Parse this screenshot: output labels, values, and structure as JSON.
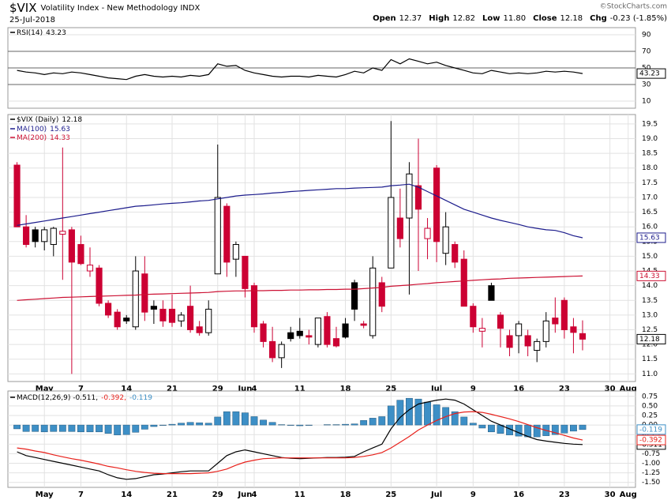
{
  "header": {
    "symbol": "$VIX",
    "name": "Volatility Index - New Methodology INDX",
    "date": "25-Jul-2018",
    "quote": [
      {
        "label": "Open",
        "value": "12.37"
      },
      {
        "label": "High",
        "value": "12.82"
      },
      {
        "label": "Low",
        "value": "11.80"
      },
      {
        "label": "Close",
        "value": "12.18"
      },
      {
        "label": "Chg",
        "value": "-0.23 (-1.85%)"
      }
    ],
    "copyright": "©StockCharts.com"
  },
  "chart_data": [
    {
      "type": "line",
      "ylim": [
        1.4,
        98.6
      ],
      "yticks": [
        10,
        30,
        50,
        70,
        90
      ],
      "reference_lines": [
        30,
        50,
        70
      ],
      "grid": true,
      "xlim": [
        -1,
        67.8
      ],
      "series": [
        {
          "name": "RSI(14)",
          "color": "#000000",
          "values": [
            47,
            45,
            44,
            42,
            44,
            43,
            45,
            44,
            42,
            40,
            38,
            37,
            36,
            40,
            42,
            40,
            39,
            40,
            39,
            41,
            40,
            42,
            55,
            52,
            53,
            47,
            44,
            42,
            40,
            39,
            40,
            40,
            39,
            41,
            40,
            39,
            42,
            46,
            44,
            50,
            47,
            60,
            55,
            61,
            58,
            55,
            57,
            53,
            50,
            47,
            44,
            43,
            47,
            45,
            43,
            44,
            43,
            44,
            46,
            45,
            46,
            45,
            43.23
          ]
        }
      ]
    },
    {
      "type": "candlestick",
      "title": "$VIX (Daily)",
      "color_up": "#000000",
      "color_down": "#cc0033",
      "grid": true,
      "open": [
        18.1,
        16.0,
        15.9,
        15.5,
        15.4,
        15.75,
        15.9,
        15.4,
        14.5,
        14.6,
        13.4,
        13.1,
        12.9,
        12.6,
        14.4,
        13.3,
        13.2,
        13.2,
        12.8,
        13.3,
        12.6,
        12.4,
        14.4,
        16.7,
        14.9,
        15.0,
        14.0,
        12.7,
        12.1,
        11.55,
        12.4,
        12.45,
        12.3,
        12.0,
        12.95,
        12.2,
        12.7,
        14.1,
        12.7,
        12.3,
        14.1,
        14.6,
        16.3,
        16.3,
        17.4,
        15.6,
        18.0,
        15.1,
        15.4,
        14.9,
        13.3,
        12.45,
        14.0,
        13.0,
        12.3,
        12.3,
        12.3,
        11.8,
        12.1,
        12.9,
        13.5,
        12.6,
        12.37
      ],
      "high": [
        18.2,
        16.4,
        16.0,
        16.0,
        16.0,
        18.7,
        16.0,
        15.7,
        15.3,
        14.7,
        13.5,
        13.2,
        13.0,
        15.0,
        15.0,
        13.5,
        13.5,
        13.7,
        13.1,
        14.0,
        12.8,
        13.5,
        18.8,
        16.8,
        15.5,
        15.0,
        14.1,
        12.8,
        12.6,
        12.1,
        12.6,
        12.9,
        12.5,
        12.9,
        13.1,
        12.6,
        12.9,
        14.2,
        12.8,
        15.0,
        14.3,
        19.6,
        17.3,
        18.2,
        19.0,
        16.3,
        18.1,
        16.5,
        15.5,
        15.2,
        13.4,
        12.9,
        14.1,
        13.1,
        12.5,
        12.8,
        12.5,
        12.2,
        13.1,
        13.6,
        13.6,
        12.9,
        12.82
      ],
      "low": [
        16.0,
        15.3,
        15.3,
        15.2,
        15.0,
        14.2,
        11.0,
        14.7,
        14.3,
        13.3,
        12.9,
        12.5,
        12.7,
        12.5,
        12.8,
        12.7,
        12.6,
        12.6,
        12.6,
        12.4,
        12.3,
        12.3,
        14.4,
        14.3,
        14.3,
        13.6,
        12.4,
        11.9,
        11.4,
        11.2,
        12.1,
        12.2,
        12.0,
        11.9,
        11.9,
        11.9,
        12.2,
        12.8,
        12.55,
        12.2,
        13.1,
        14.6,
        15.3,
        13.7,
        14.5,
        14.9,
        14.8,
        14.7,
        14.6,
        13.3,
        12.4,
        11.9,
        13.5,
        11.9,
        11.6,
        11.7,
        11.6,
        11.4,
        11.9,
        12.4,
        12.2,
        11.7,
        11.8
      ],
      "close": [
        16.0,
        15.4,
        15.5,
        15.9,
        15.95,
        15.85,
        14.8,
        14.75,
        14.7,
        13.4,
        13.0,
        12.6,
        12.8,
        14.5,
        13.1,
        13.2,
        12.8,
        12.75,
        13.0,
        12.5,
        12.4,
        13.2,
        17.0,
        14.8,
        15.4,
        13.9,
        12.6,
        12.1,
        11.55,
        12.0,
        12.2,
        12.3,
        12.25,
        12.9,
        12.0,
        11.95,
        12.25,
        13.2,
        12.65,
        14.6,
        13.3,
        17.0,
        15.6,
        17.8,
        16.6,
        15.95,
        15.5,
        16.0,
        14.8,
        13.3,
        12.6,
        12.55,
        13.5,
        12.55,
        11.9,
        12.7,
        11.95,
        12.1,
        12.8,
        12.7,
        12.5,
        12.41,
        12.18
      ],
      "series": [
        {
          "name": "MA(100)",
          "color": "#1c1c8c",
          "values": [
            16.05,
            16.1,
            16.15,
            16.2,
            16.25,
            16.3,
            16.35,
            16.4,
            16.45,
            16.5,
            16.55,
            16.6,
            16.65,
            16.7,
            16.72,
            16.75,
            16.78,
            16.8,
            16.82,
            16.85,
            16.88,
            16.9,
            16.95,
            17.0,
            17.05,
            17.08,
            17.1,
            17.12,
            17.15,
            17.17,
            17.2,
            17.22,
            17.24,
            17.26,
            17.28,
            17.3,
            17.3,
            17.32,
            17.33,
            17.34,
            17.35,
            17.4,
            17.42,
            17.45,
            17.35,
            17.2,
            17.05,
            16.9,
            16.75,
            16.6,
            16.5,
            16.4,
            16.3,
            16.22,
            16.15,
            16.08,
            16.0,
            15.95,
            15.9,
            15.88,
            15.8,
            15.7,
            15.63
          ]
        },
        {
          "name": "MA(200)",
          "color": "#cc1133",
          "values": [
            13.5,
            13.52,
            13.54,
            13.56,
            13.58,
            13.6,
            13.61,
            13.62,
            13.63,
            13.64,
            13.65,
            13.66,
            13.67,
            13.68,
            13.7,
            13.71,
            13.72,
            13.73,
            13.74,
            13.75,
            13.76,
            13.77,
            13.8,
            13.81,
            13.82,
            13.82,
            13.83,
            13.83,
            13.84,
            13.84,
            13.85,
            13.85,
            13.86,
            13.86,
            13.87,
            13.87,
            13.88,
            13.88,
            13.9,
            13.92,
            13.94,
            13.98,
            14.0,
            14.02,
            14.05,
            14.07,
            14.1,
            14.12,
            14.14,
            14.16,
            14.18,
            14.2,
            14.22,
            14.23,
            14.25,
            14.26,
            14.27,
            14.28,
            14.29,
            14.3,
            14.31,
            14.32,
            14.33
          ]
        }
      ],
      "ylim": [
        10.74,
        19.82
      ],
      "yticks": [
        {
          "value": 11,
          "label": "11.0"
        },
        11.5,
        {
          "value": 12,
          "label": "12.0"
        },
        12.5,
        {
          "value": 13,
          "label": "13.0"
        },
        13.5,
        {
          "value": 14,
          "label": "14.0"
        },
        14.5,
        {
          "value": 15,
          "label": "15.0"
        },
        15.5,
        {
          "value": 16,
          "label": "16.0"
        },
        16.5,
        {
          "value": 17,
          "label": "17.0"
        },
        17.5,
        {
          "value": 18,
          "label": "18.0"
        },
        18.5,
        {
          "value": 19,
          "label": "19.0"
        },
        19.5
      ],
      "xlim": [
        -1,
        67.8
      ],
      "xticks": [
        {
          "value": 3,
          "label": "May"
        },
        7,
        {
          "value": 12,
          "label": "14"
        },
        {
          "value": 17,
          "label": "21"
        },
        {
          "value": 22,
          "label": "29"
        },
        {
          "value": 25,
          "label": "Jun"
        },
        {
          "value": 26,
          "label": "4"
        },
        {
          "value": 31,
          "label": "11"
        },
        {
          "value": 36,
          "label": "18"
        },
        {
          "value": 41,
          "label": "25"
        },
        {
          "value": 46,
          "label": "Jul"
        },
        {
          "value": 50,
          "label": "9"
        },
        {
          "value": 55,
          "label": "16"
        },
        {
          "value": 60,
          "label": "23"
        },
        {
          "value": 65,
          "label": "30"
        },
        {
          "value": 67,
          "label": "Aug"
        }
      ]
    },
    {
      "type": "combo",
      "grid": true,
      "legend": [
        "MACD(12,26,9) -0.511,",
        "-0.392,",
        "-0.119"
      ],
      "series": [
        {
          "type": "line",
          "color": "#000000",
          "values": [
            -0.7,
            -0.8,
            -0.85,
            -0.9,
            -0.95,
            -1.0,
            -1.05,
            -1.1,
            -1.15,
            -1.2,
            -1.3,
            -1.38,
            -1.42,
            -1.4,
            -1.35,
            -1.3,
            -1.28,
            -1.25,
            -1.22,
            -1.2,
            -1.2,
            -1.2,
            -1.0,
            -0.8,
            -0.7,
            -0.65,
            -0.7,
            -0.75,
            -0.8,
            -0.85,
            -0.87,
            -0.88,
            -0.87,
            -0.86,
            -0.85,
            -0.85,
            -0.84,
            -0.82,
            -0.7,
            -0.6,
            -0.5,
            -0.1,
            0.2,
            0.4,
            0.55,
            0.6,
            0.65,
            0.68,
            0.65,
            0.55,
            0.4,
            0.25,
            0.1,
            0.0,
            -0.1,
            -0.2,
            -0.3,
            -0.38,
            -0.42,
            -0.45,
            -0.48,
            -0.5,
            -0.511
          ]
        },
        {
          "type": "line",
          "color": "#e8211b",
          "values": [
            -0.6,
            -0.63,
            -0.68,
            -0.72,
            -0.78,
            -0.83,
            -0.88,
            -0.92,
            -0.97,
            -1.02,
            -1.08,
            -1.12,
            -1.17,
            -1.21,
            -1.24,
            -1.26,
            -1.27,
            -1.27,
            -1.27,
            -1.27,
            -1.26,
            -1.25,
            -1.21,
            -1.15,
            -1.05,
            -0.97,
            -0.92,
            -0.88,
            -0.87,
            -0.86,
            -0.86,
            -0.86,
            -0.86,
            -0.86,
            -0.86,
            -0.86,
            -0.86,
            -0.85,
            -0.82,
            -0.78,
            -0.72,
            -0.6,
            -0.45,
            -0.3,
            -0.13,
            0.0,
            0.12,
            0.22,
            0.3,
            0.34,
            0.35,
            0.33,
            0.28,
            0.22,
            0.16,
            0.09,
            0.01,
            -0.07,
            -0.14,
            -0.2,
            -0.27,
            -0.34,
            -0.392
          ]
        },
        {
          "type": "bar",
          "color": "#3d8fc6",
          "values": [
            -0.1,
            -0.17,
            -0.17,
            -0.18,
            -0.17,
            -0.17,
            -0.17,
            -0.18,
            -0.18,
            -0.18,
            -0.22,
            -0.26,
            -0.25,
            -0.19,
            -0.11,
            -0.04,
            -0.01,
            0.02,
            0.05,
            0.07,
            0.06,
            0.05,
            0.21,
            0.35,
            0.35,
            0.32,
            0.22,
            0.13,
            0.07,
            0.01,
            -0.01,
            -0.02,
            -0.01,
            0.0,
            0.01,
            0.01,
            0.02,
            0.03,
            0.12,
            0.18,
            0.22,
            0.5,
            0.65,
            0.7,
            0.68,
            0.6,
            0.53,
            0.46,
            0.35,
            0.21,
            0.05,
            -0.08,
            -0.18,
            -0.22,
            -0.26,
            -0.29,
            -0.31,
            -0.31,
            -0.28,
            -0.25,
            -0.21,
            -0.16,
            -0.119
          ]
        }
      ],
      "ylim": [
        -1.63,
        0.89
      ],
      "yticks": [
        0.75,
        {
          "value": 0.5,
          "label": "0.50"
        },
        0.25,
        {
          "value": 0,
          "label": "0.00"
        },
        -0.25,
        {
          "value": -0.5,
          "label": "-0.50"
        },
        -0.75,
        {
          "value": -1,
          "label": "-1.00"
        },
        -1.25,
        {
          "value": -1.5,
          "label": "-1.50"
        }
      ],
      "xlim": [
        -1,
        67.8
      ],
      "xticks": [
        {
          "value": 3,
          "label": "May"
        },
        7,
        {
          "value": 12,
          "label": "14"
        },
        {
          "value": 17,
          "label": "21"
        },
        {
          "value": 22,
          "label": "29"
        },
        {
          "value": 25,
          "label": "Jun"
        },
        {
          "value": 26,
          "label": "4"
        },
        {
          "value": 31,
          "label": "11"
        },
        {
          "value": 36,
          "label": "18"
        },
        {
          "value": 41,
          "label": "25"
        },
        {
          "value": 46,
          "label": "Jul"
        },
        {
          "value": 50,
          "label": "9"
        },
        {
          "value": 55,
          "label": "16"
        },
        {
          "value": 60,
          "label": "23"
        },
        {
          "value": 65,
          "label": "30"
        },
        {
          "value": 67,
          "label": "Aug"
        }
      ]
    }
  ]
}
